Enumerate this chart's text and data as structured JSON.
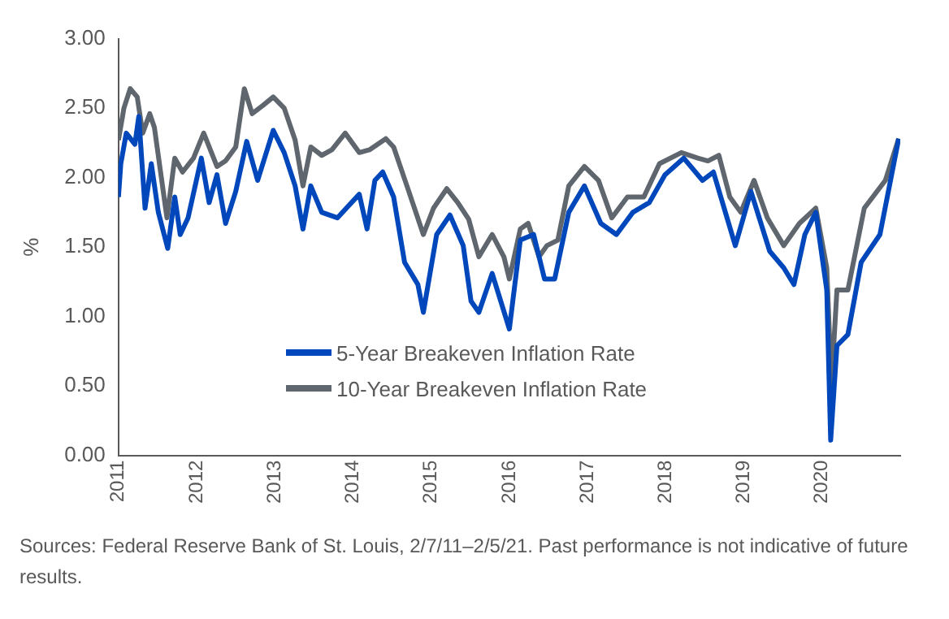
{
  "chart_data": {
    "type": "line",
    "ylabel": "%",
    "annotations": [
      "Sources: Federal Reserve Bank of St. Louis, 2/7/11–2/5/21. Past performance is not indicative of future results."
    ],
    "xlim": [
      2011,
      2021
    ],
    "xticks": [
      2011,
      2012,
      2013,
      2014,
      2015,
      2016,
      2017,
      2018,
      2019,
      2020
    ],
    "ylim": [
      0,
      3
    ],
    "yticks": [
      {
        "value": 0,
        "label": "0.00"
      },
      {
        "value": 0.5,
        "label": "0.50"
      },
      {
        "value": 1,
        "label": "1.00"
      },
      {
        "value": 1.5,
        "label": "1.50"
      },
      {
        "value": 2,
        "label": "2.00"
      },
      {
        "value": 2.5,
        "label": "2.50"
      },
      {
        "value": 3,
        "label": "3.00"
      }
    ],
    "grid": false,
    "legend": "bottom left",
    "marker": "none",
    "line_style": "solid",
    "series": [
      {
        "name": "5-Year Breakeven Inflation Rate",
        "color": "#0047bb",
        "x": [
          2011.0,
          2011.03,
          2011.1,
          2011.21,
          2011.26,
          2011.34,
          2011.42,
          2011.51,
          2011.63,
          2011.72,
          2011.79,
          2011.89,
          2012.06,
          2012.16,
          2012.26,
          2012.37,
          2012.5,
          2012.64,
          2012.78,
          2012.98,
          2013.12,
          2013.26,
          2013.36,
          2013.46,
          2013.6,
          2013.8,
          2014.08,
          2014.18,
          2014.28,
          2014.38,
          2014.52,
          2014.66,
          2014.83,
          2014.9,
          2015.07,
          2015.24,
          2015.41,
          2015.51,
          2015.61,
          2015.78,
          2016.0,
          2016.14,
          2016.31,
          2016.45,
          2016.58,
          2016.76,
          2016.96,
          2017.17,
          2017.37,
          2017.58,
          2017.79,
          2017.99,
          2018.23,
          2018.47,
          2018.61,
          2018.89,
          2019.09,
          2019.33,
          2019.51,
          2019.64,
          2019.78,
          2019.92,
          2020.06,
          2020.11,
          2020.19,
          2020.33,
          2020.5,
          2020.74,
          2020.98
        ],
        "values": [
          1.86,
          2.1,
          2.32,
          2.24,
          2.44,
          1.78,
          2.1,
          1.75,
          1.49,
          1.86,
          1.59,
          1.71,
          2.14,
          1.82,
          2.02,
          1.67,
          1.9,
          2.26,
          1.98,
          2.34,
          2.18,
          1.94,
          1.63,
          1.94,
          1.75,
          1.71,
          1.88,
          1.63,
          1.98,
          2.04,
          1.86,
          1.39,
          1.23,
          1.03,
          1.59,
          1.73,
          1.51,
          1.11,
          1.03,
          1.31,
          0.91,
          1.55,
          1.59,
          1.27,
          1.27,
          1.75,
          1.94,
          1.67,
          1.59,
          1.75,
          1.82,
          2.02,
          2.14,
          1.98,
          2.04,
          1.51,
          1.9,
          1.47,
          1.35,
          1.23,
          1.59,
          1.75,
          1.19,
          0.11,
          0.79,
          0.87,
          1.39,
          1.59,
          2.28
        ]
      },
      {
        "name": "10-Year Breakeven Inflation Rate",
        "color": "#5f666d",
        "x": [
          2011.0,
          2011.07,
          2011.15,
          2011.24,
          2011.31,
          2011.4,
          2011.46,
          2011.62,
          2011.72,
          2011.82,
          2011.96,
          2012.09,
          2012.26,
          2012.37,
          2012.5,
          2012.61,
          2012.71,
          2012.85,
          2012.98,
          2013.12,
          2013.26,
          2013.36,
          2013.46,
          2013.6,
          2013.73,
          2013.9,
          2014.08,
          2014.21,
          2014.42,
          2014.52,
          2014.69,
          2014.9,
          2015.03,
          2015.2,
          2015.34,
          2015.48,
          2015.61,
          2015.78,
          2015.93,
          2016.0,
          2016.14,
          2016.24,
          2016.38,
          2016.48,
          2016.62,
          2016.76,
          2016.96,
          2017.14,
          2017.31,
          2017.51,
          2017.72,
          2017.92,
          2018.2,
          2018.41,
          2018.54,
          2018.68,
          2018.82,
          2018.96,
          2019.13,
          2019.3,
          2019.51,
          2019.71,
          2019.92,
          2020.06,
          2020.12,
          2020.19,
          2020.33,
          2020.54,
          2020.81,
          2020.98
        ],
        "values": [
          2.27,
          2.5,
          2.64,
          2.58,
          2.32,
          2.46,
          2.36,
          1.71,
          2.14,
          2.04,
          2.14,
          2.32,
          2.08,
          2.12,
          2.22,
          2.64,
          2.46,
          2.52,
          2.58,
          2.5,
          2.27,
          1.94,
          2.22,
          2.16,
          2.2,
          2.32,
          2.18,
          2.2,
          2.28,
          2.22,
          1.94,
          1.59,
          1.78,
          1.92,
          1.82,
          1.7,
          1.43,
          1.59,
          1.43,
          1.27,
          1.63,
          1.67,
          1.43,
          1.51,
          1.55,
          1.94,
          2.08,
          1.98,
          1.71,
          1.86,
          1.86,
          2.1,
          2.18,
          2.14,
          2.12,
          2.16,
          1.86,
          1.75,
          1.98,
          1.71,
          1.51,
          1.67,
          1.78,
          1.35,
          0.51,
          1.19,
          1.19,
          1.78,
          1.98,
          2.28
        ]
      }
    ]
  }
}
